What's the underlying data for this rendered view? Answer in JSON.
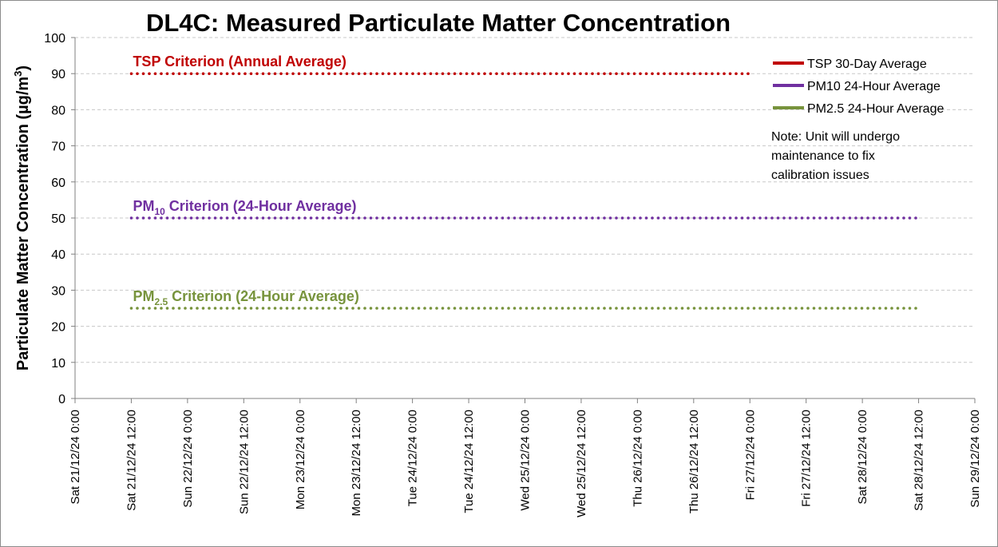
{
  "chart_data": {
    "type": "line",
    "title": "DL4C: Measured Particulate Matter Concentration",
    "ylabel": "Particulate Matter Concentration (µg/m³)",
    "ylabel_parts": {
      "main": "Particulate Matter Concentration (µg/m",
      "sup": "3",
      "end": ")"
    },
    "xlabel": "",
    "ylim": [
      0,
      100
    ],
    "yticks": [
      0,
      10,
      20,
      30,
      40,
      50,
      60,
      70,
      80,
      90,
      100
    ],
    "grid": true,
    "legend_position": "top-right",
    "x_ticks": [
      "Sat 21/12/24 0:00",
      "Sat 21/12/24 12:00",
      "Sun 22/12/24 0:00",
      "Sun 22/12/24 12:00",
      "Mon 23/12/24 0:00",
      "Mon 23/12/24 12:00",
      "Tue 24/12/24 0:00",
      "Tue 24/12/24 12:00",
      "Wed 25/12/24 0:00",
      "Wed 25/12/24 12:00",
      "Thu 26/12/24 0:00",
      "Thu 26/12/24 12:00",
      "Fri 27/12/24 0:00",
      "Fri 27/12/24 12:00",
      "Sat 28/12/24 0:00",
      "Sat 28/12/24 12:00",
      "Sun 29/12/24 0:00"
    ],
    "series": [
      {
        "name": "TSP 30-Day Average",
        "color": "#c00000",
        "values": []
      },
      {
        "name": "PM10 24-Hour Average",
        "color": "#7030a0",
        "values": []
      },
      {
        "name": "PM2.5 24-Hour Average",
        "color": "#77933c",
        "values": []
      }
    ],
    "criteria": [
      {
        "label_main": "TSP Criterion (Annual Average)",
        "label_sub": "",
        "label_rest": "",
        "value": 90,
        "x_start": "Sat 21/12/24 12:00",
        "x_end": "Fri 27/12/24 0:00",
        "color": "#c00000"
      },
      {
        "label_main": "PM",
        "label_sub": "10",
        "label_rest": " Criterion (24-Hour Average)",
        "value": 50,
        "x_start": "Sat 21/12/24 12:00",
        "x_end": "Sat 28/12/24 12:00",
        "color": "#7030a0"
      },
      {
        "label_main": "PM",
        "label_sub": "2.5",
        "label_rest": " Criterion (24-Hour Average)",
        "value": 25,
        "x_start": "Sat 21/12/24 12:00",
        "x_end": "Sat 28/12/24 12:00",
        "color": "#77933c"
      }
    ],
    "note": [
      "Note: Unit will undergo",
      "maintenance to fix",
      "calibration issues"
    ]
  }
}
